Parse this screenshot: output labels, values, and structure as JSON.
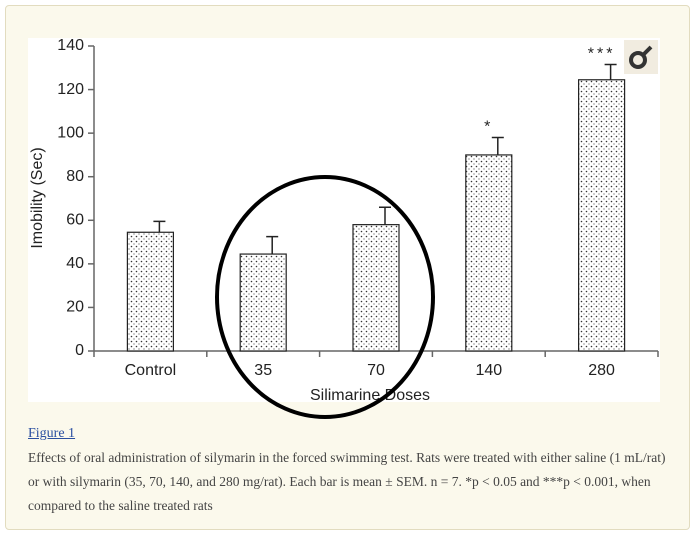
{
  "chart_data": {
    "type": "bar",
    "xlabel": "Silimarine Doses",
    "ylabel": "Imobility (Sec)",
    "categories": [
      "Control",
      "35",
      "70",
      "140",
      "280"
    ],
    "values": [
      54.5,
      44.5,
      58,
      90,
      124.5
    ],
    "errors": [
      5,
      8,
      8,
      8,
      7
    ],
    "significance": [
      null,
      null,
      null,
      "*",
      "***"
    ],
    "ylim": [
      0,
      140
    ],
    "yticks": [
      0,
      20,
      40,
      60,
      80,
      100,
      120,
      140
    ],
    "color": "#ffffff"
  },
  "figure": {
    "link": "Figure 1",
    "caption": "Effects of oral administration of silymarin in the forced swimming test. Rats were treated with either saline (1 mL/rat) or with silymarin (35, 70, 140, and 280 mg/rat). Each bar is mean ± SEM. n = 7. *p < 0.05 and ***p < 0.001, when compared to the saline treated rats"
  }
}
